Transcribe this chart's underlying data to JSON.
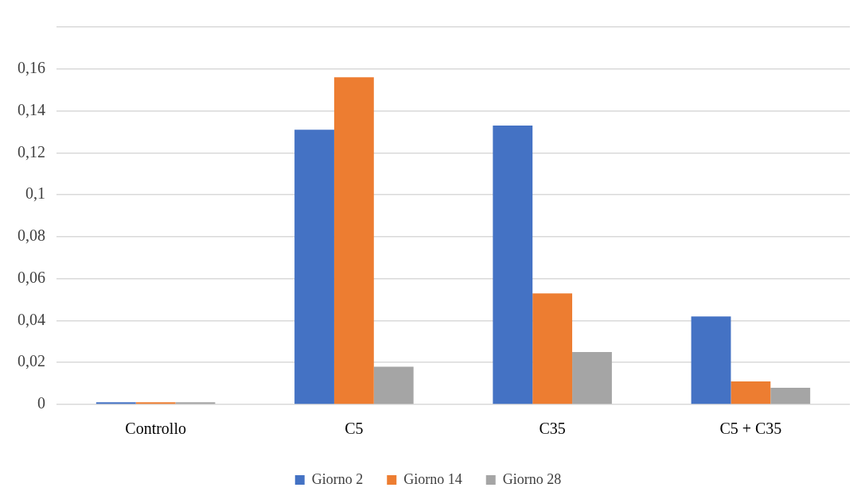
{
  "chart_data": {
    "type": "bar",
    "categories": [
      "Controllo",
      "C5",
      "C35",
      "C5 + C35"
    ],
    "series": [
      {
        "name": "Giorno 2",
        "color": "#4472c4",
        "values": [
          0.001,
          0.131,
          0.133,
          0.042
        ]
      },
      {
        "name": "Giorno 14",
        "color": "#ed7d31",
        "values": [
          0.001,
          0.156,
          0.053,
          0.011
        ]
      },
      {
        "name": "Giorno 28",
        "color": "#a5a5a5",
        "values": [
          0.001,
          0.018,
          0.025,
          0.008
        ]
      }
    ],
    "ylim": [
      0,
      0.18
    ],
    "yticks": [
      0,
      {
        "value": 0.02,
        "label": "0,02"
      },
      {
        "value": 0.04,
        "label": "0,04"
      },
      {
        "value": 0.06,
        "label": "0,06"
      },
      {
        "value": 0.08,
        "label": "0,08"
      },
      {
        "value": 0.1,
        "label": "0,1"
      },
      {
        "value": 0.12,
        "label": "0,12"
      },
      {
        "value": 0.14,
        "label": "0,14"
      },
      {
        "value": 0.16,
        "label": "0,16"
      },
      {
        "value": 0.18,
        "label": null
      }
    ],
    "grid": "y",
    "legend": "bottom"
  }
}
